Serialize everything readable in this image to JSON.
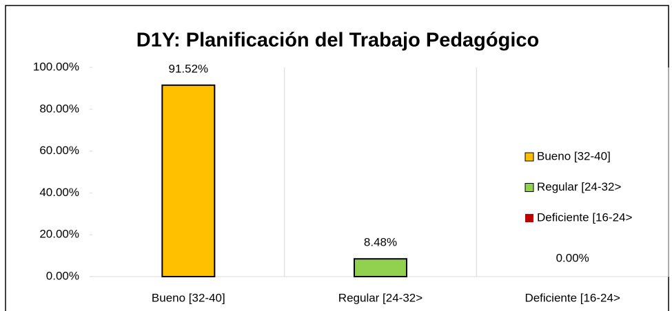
{
  "chart_data": {
    "type": "bar",
    "title": "D1Y: Planificación del Trabajo Pedagógico",
    "categories": [
      "Bueno [32-40]",
      "Regular [24-32>",
      "Deficiente [16-24>"
    ],
    "values": [
      91.52,
      8.48,
      0
    ],
    "value_labels": [
      "91.52%",
      "8.48%",
      "0.00%"
    ],
    "colors": [
      "#ffc000",
      "#92d050",
      "#c00000"
    ],
    "ylim": [
      0,
      100
    ],
    "yticks": [
      {
        "value": 0,
        "label": "0.00%"
      },
      {
        "value": 20,
        "label": "20.00%"
      },
      {
        "value": 40,
        "label": "40.00%"
      },
      {
        "value": 60,
        "label": "60.00%"
      },
      {
        "value": 80,
        "label": "80.00%"
      },
      {
        "value": 100,
        "label": "100.00%"
      }
    ],
    "legend": "right"
  }
}
